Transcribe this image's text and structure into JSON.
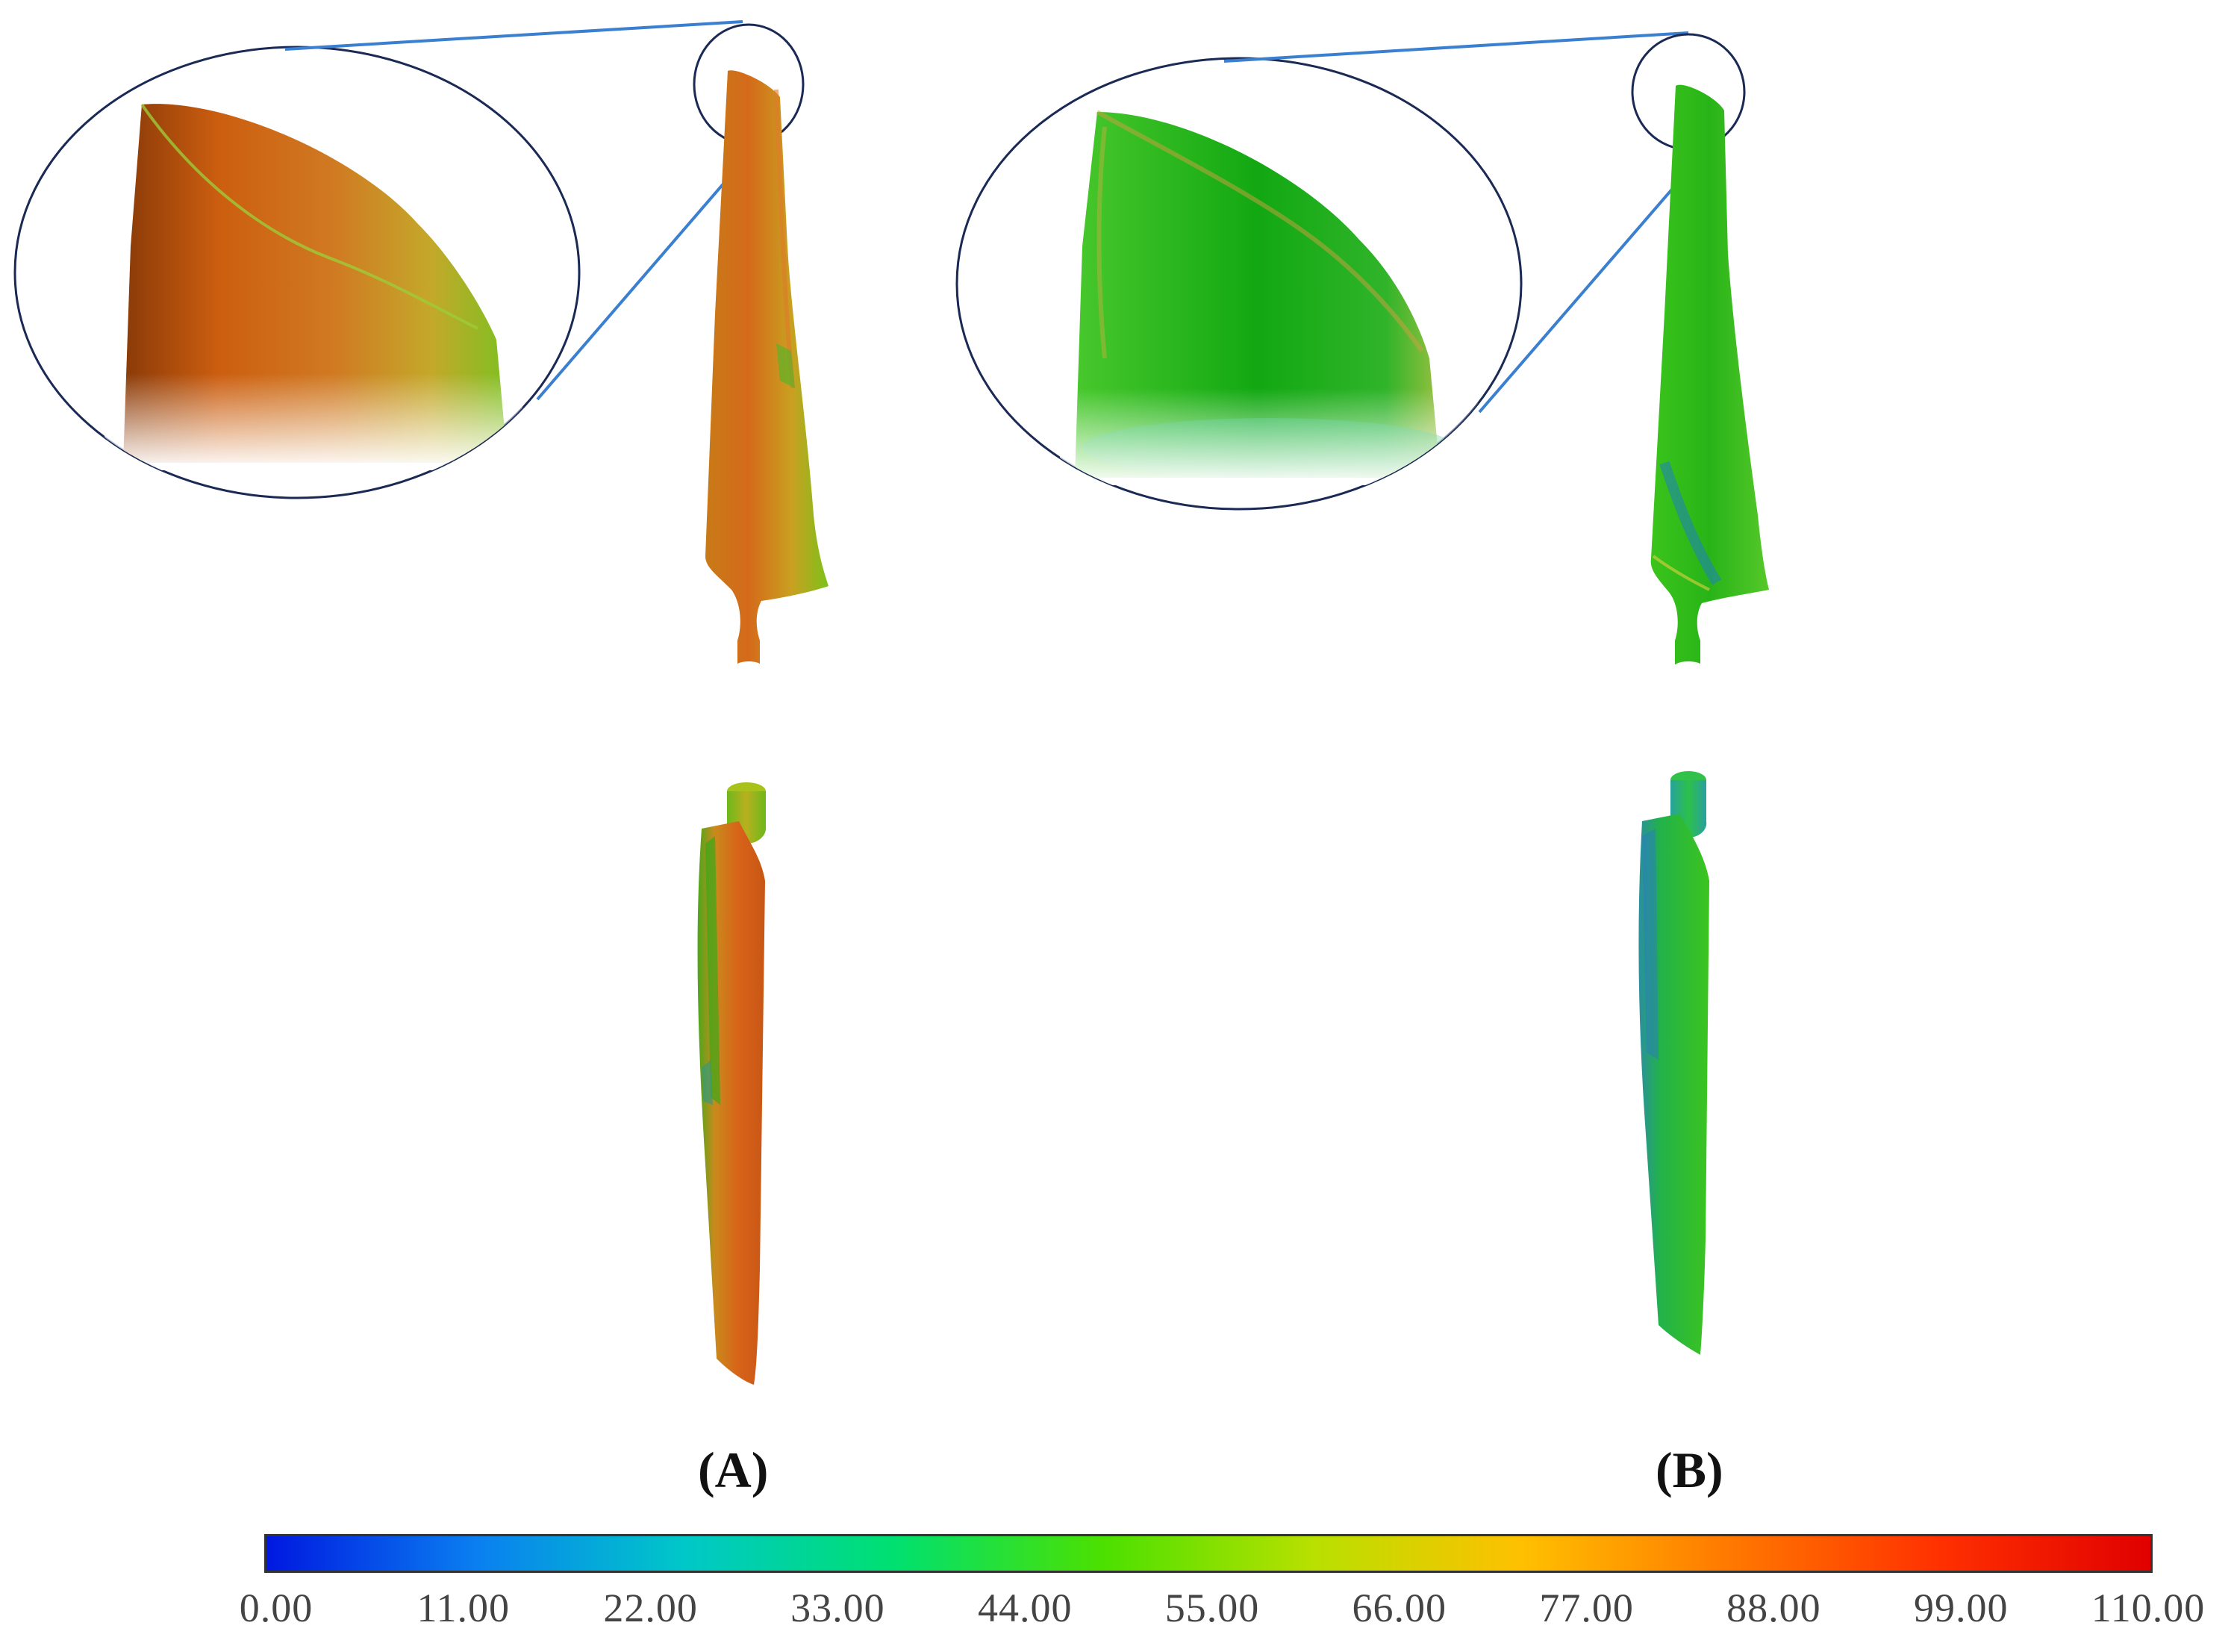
{
  "panels": [
    {
      "id": "A",
      "label": "(A)"
    },
    {
      "id": "B",
      "label": "(B)"
    }
  ],
  "colorbar": {
    "ticks": [
      "0.00",
      "11.00",
      "22.00",
      "33.00",
      "44.00",
      "55.00",
      "66.00",
      "77.00",
      "88.00",
      "99.00",
      "110.00"
    ],
    "colors": [
      "#0018e0",
      "#0a7ff0",
      "#00c8c8",
      "#00e070",
      "#4ce000",
      "#b8e000",
      "#ffc000",
      "#ff7800",
      "#ff3000",
      "#e00000"
    ]
  },
  "colors": {
    "leader_line": "#3a7fd0",
    "zoom_circle": "#1a2a55",
    "blade_a": "#d2691e",
    "blade_b": "#2ebd1a"
  }
}
